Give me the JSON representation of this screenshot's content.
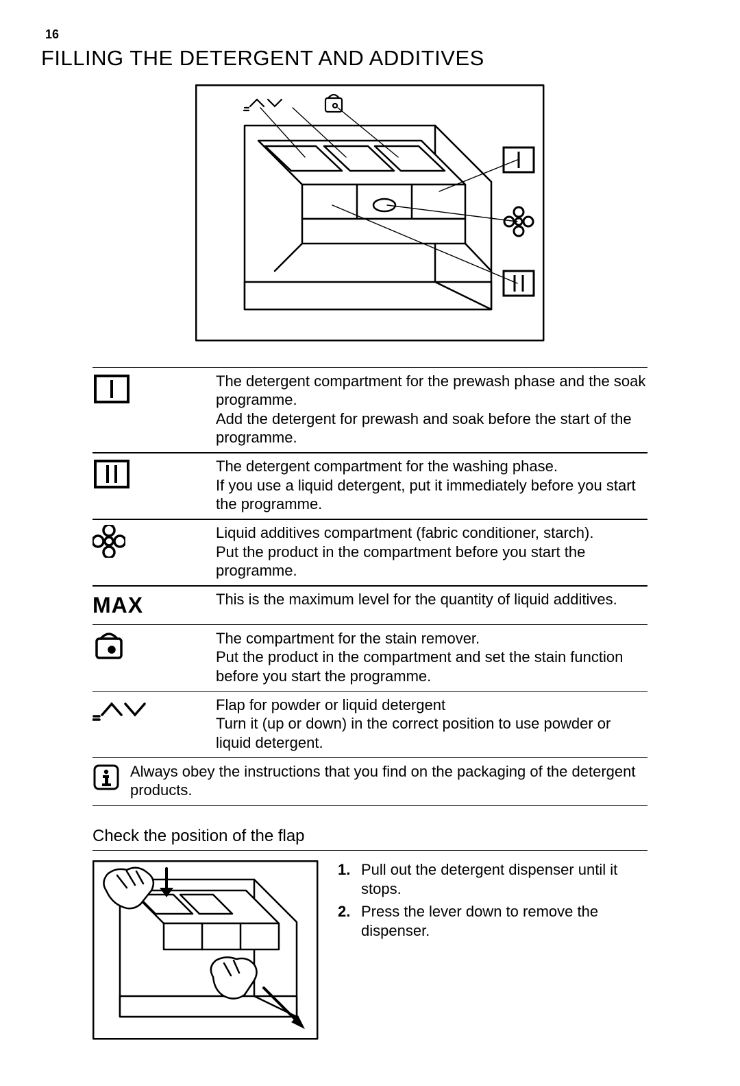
{
  "page": {
    "number": "16"
  },
  "section": {
    "title": "FILLING THE DETERGENT AND ADDITIVES"
  },
  "table": {
    "rows": [
      {
        "symbol": "prewash",
        "text": "The detergent compartment for the prewash phase and the soak programme.\nAdd the detergent for prewash and soak before the start of the programme."
      },
      {
        "symbol": "mainwash",
        "text": "The detergent compartment for the washing phase.\nIf you use a liquid detergent, put it immediately before you start the programme."
      },
      {
        "symbol": "flower",
        "text": "Liquid additives compartment (fabric conditioner, starch).\nPut the product in the compartment before you start the programme."
      },
      {
        "symbol": "max",
        "text": "This is the maximum level for the quantity of liquid additives."
      },
      {
        "symbol": "stain",
        "text": "The compartment for the stain remover.\nPut the product in the compartment and set the stain function before you start the programme."
      },
      {
        "symbol": "flap",
        "text": "Flap for powder or liquid detergent\nTurn it (up or down) in the correct position to use powder or liquid detergent."
      }
    ],
    "info": "Always obey the instructions that you find on the packaging of the detergent products."
  },
  "sub": {
    "heading": "Check the position of the flap",
    "steps": [
      {
        "n": "1.",
        "t": "Pull out the detergent dispenser until it stops."
      },
      {
        "n": "2.",
        "t": "Press the lever down to remove the dispenser."
      }
    ]
  },
  "style": {
    "stroke": "#000000",
    "bg": "#ffffff",
    "text_color": "#000000",
    "title_fontsize": 31,
    "body_fontsize": 22
  }
}
